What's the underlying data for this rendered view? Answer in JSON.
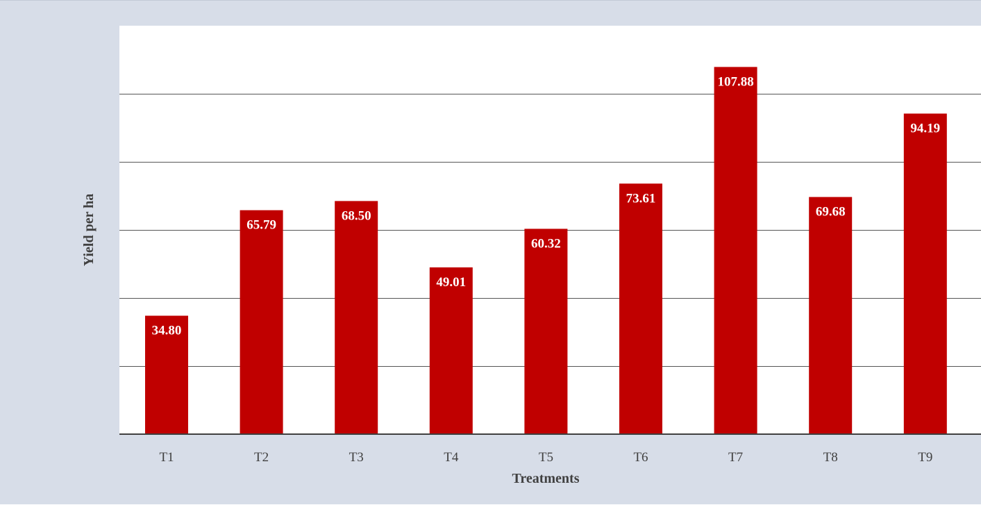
{
  "chart_data": {
    "type": "bar",
    "title": "",
    "xlabel": "Treatments",
    "ylabel": "Yield per ha",
    "categories": [
      "T1",
      "T2",
      "T3",
      "T4",
      "T5",
      "T6",
      "T7",
      "T8",
      "T9"
    ],
    "values": [
      34.8,
      65.79,
      68.5,
      49.01,
      60.32,
      73.61,
      107.88,
      69.68,
      94.19
    ],
    "labels": [
      "34.80",
      "65.79",
      "68.50",
      "49.01",
      "60.32",
      "73.61",
      "107.88",
      "69.68",
      "94.19"
    ],
    "ylim": [
      0,
      120
    ],
    "grid": true,
    "legend": "none",
    "bar_color": "#c00000",
    "background_color": "#d7dde8",
    "plot_background_color": "#ffffff"
  }
}
